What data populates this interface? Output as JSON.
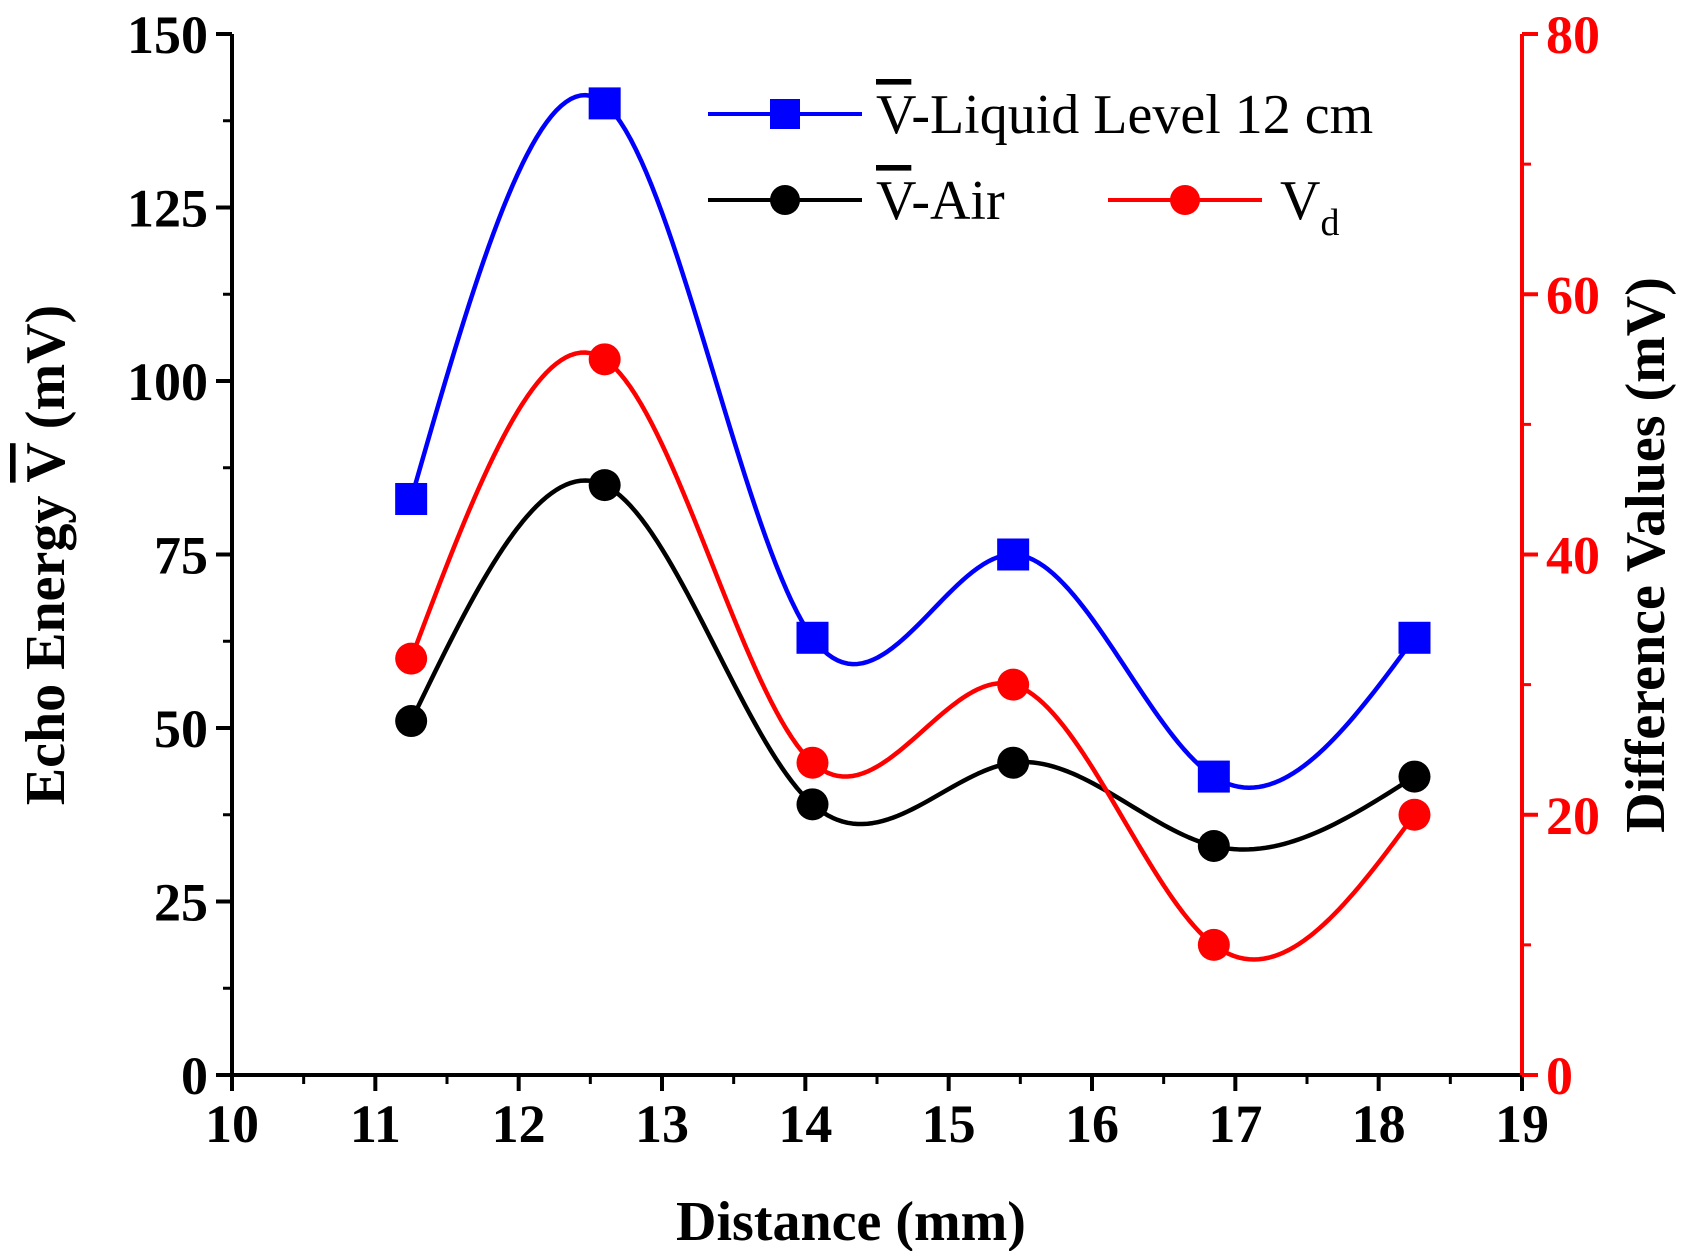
{
  "chart_data": {
    "type": "line",
    "title": "",
    "xlabel": "Distance (mm)",
    "ylabel_left": {
      "prefix": "Echo Energy ",
      "symbol": "V",
      "suffix": " (mV)"
    },
    "ylabel_right": "Difference Values (mV)",
    "xlim": [
      10,
      19
    ],
    "ylim_left": [
      0,
      150
    ],
    "ylim_right": [
      0,
      80
    ],
    "x_ticks": [
      10,
      11,
      12,
      13,
      14,
      15,
      16,
      17,
      18,
      19
    ],
    "x_tick_labels": [
      "10",
      "11",
      "12",
      "13",
      "14",
      "15",
      "16",
      "17",
      "18",
      "19"
    ],
    "y_left_ticks": [
      0,
      25,
      50,
      75,
      100,
      125,
      150
    ],
    "y_left_tick_labels": [
      "0",
      "25",
      "50",
      "75",
      "100",
      "125",
      "150"
    ],
    "y_right_ticks": [
      0,
      20,
      40,
      60,
      80
    ],
    "y_right_tick_labels": [
      "0",
      "20",
      "40",
      "60",
      "80"
    ],
    "grid": false,
    "legend_position": "top-right",
    "x": [
      11.25,
      12.6,
      14.05,
      15.45,
      16.85,
      18.25
    ],
    "series": [
      {
        "name": "V-Liquid Level 12 cm",
        "legend": {
          "symbol": "V",
          "rest": "-Liquid Level 12 cm"
        },
        "axis": "left",
        "color": "#0000ff",
        "marker": "square",
        "values": [
          83,
          140,
          63,
          75,
          43,
          63
        ]
      },
      {
        "name": "V-Air",
        "legend": {
          "symbol": "V",
          "rest": "-Air"
        },
        "axis": "left",
        "color": "#000000",
        "marker": "circle",
        "values": [
          51,
          85,
          39,
          45,
          33,
          43
        ]
      },
      {
        "name": "Vd",
        "legend": {
          "base": "V",
          "sub": "d"
        },
        "axis": "right",
        "color": "#ff0000",
        "marker": "circle",
        "values": [
          32,
          55,
          24,
          30,
          10,
          20
        ]
      }
    ]
  }
}
